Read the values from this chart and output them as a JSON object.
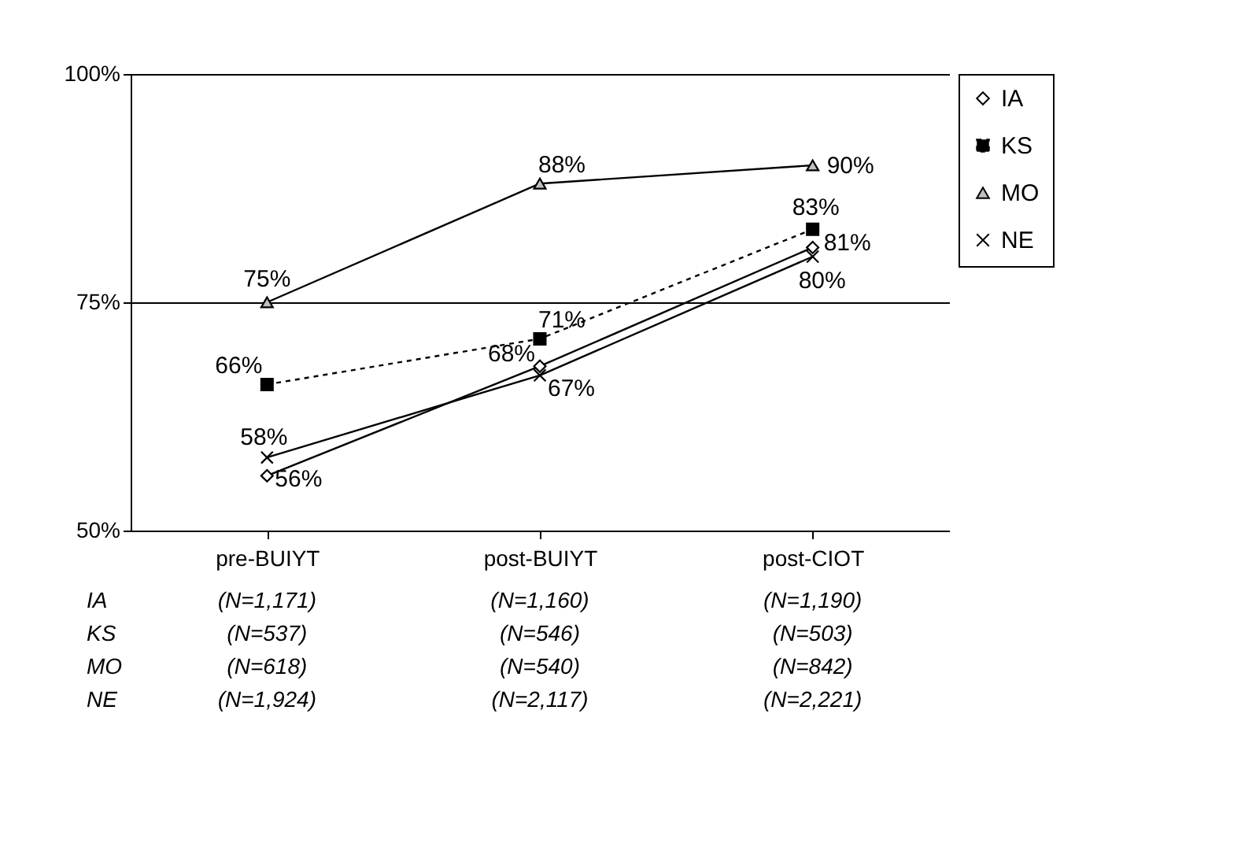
{
  "chart_data": {
    "type": "line",
    "categories": [
      "pre-BUIYT",
      "post-BUIYT",
      "post-CIOT"
    ],
    "ylim": [
      50,
      100
    ],
    "yticks": [
      {
        "value": 50,
        "label": "50%"
      },
      {
        "value": 75,
        "label": "75%"
      },
      {
        "value": 100,
        "label": "100%"
      }
    ],
    "grid": "y",
    "legend": "right",
    "series": [
      {
        "name": "IA",
        "color": "#000000",
        "marker": "diamond",
        "line_style": "solid",
        "values": [
          56,
          68,
          81
        ],
        "value_labels": [
          "56%",
          "68%",
          "81%"
        ]
      },
      {
        "name": "KS",
        "color": "#000000",
        "marker": "square",
        "line_style": "dotted",
        "values": [
          66,
          71,
          83
        ],
        "value_labels": [
          "66%",
          "71%",
          "83%"
        ]
      },
      {
        "name": "MO",
        "color": "#000000",
        "marker": "triangle",
        "line_style": "solid",
        "values": [
          75,
          88,
          90
        ],
        "value_labels": [
          "75%",
          "88%",
          "90%"
        ]
      },
      {
        "name": "NE",
        "color": "#000000",
        "marker": "cross",
        "line_style": "solid",
        "values": [
          58,
          67,
          80
        ],
        "value_labels": [
          "58%",
          "67%",
          "80%"
        ]
      }
    ],
    "annotations": [
      "IA",
      "(N=1,171)",
      "(N=1,160)",
      "(N=1,190)",
      "KS",
      "(N=537)",
      "(N=546)",
      "(N=503)",
      "MO",
      "(N=618)",
      "(N=540)",
      "(N=842)",
      "NE",
      "(N=1,924)",
      "(N=2,117)",
      "(N=2,221)"
    ]
  }
}
